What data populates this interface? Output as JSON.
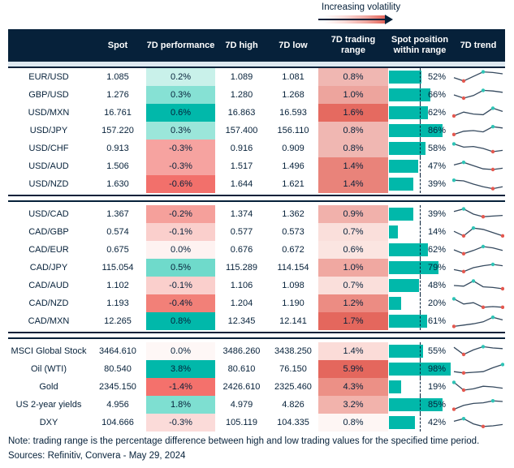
{
  "legend": {
    "label": "Increasing volatility"
  },
  "columns": [
    "",
    "Spot",
    "7D performance",
    "7D high",
    "7D low",
    "7D trading range",
    "Spot position within range",
    "7D trend"
  ],
  "footer": {
    "note": "Note: trading range is the percentage difference between high and low trading values for the specified time period.",
    "sources": "Sources: Refinitiv, Convera - May 29, 2024"
  },
  "colors": {
    "navy": "#06213A",
    "teal_bar": "#01B8AA",
    "sparkline_line": "#35495E",
    "dot_high": "#2EC4B6",
    "dot_low": "#E4584F",
    "header_strip": "#DEE8F0",
    "gradient_end": "#E4675D"
  },
  "chart_data": {
    "type": "table",
    "title": "Increasing volatility",
    "columns": [
      "Spot",
      "7D performance",
      "7D high",
      "7D low",
      "7D trading range",
      "Spot position within range",
      "7D trend"
    ],
    "groups": [
      {
        "rows": [
          {
            "name": "EUR/USD",
            "spot": "1.085",
            "performance": "0.2%",
            "perf_color": "#C9F1EA",
            "high": "1.089",
            "low": "1.081",
            "range": "0.8%",
            "range_color": "#F0B7B2",
            "position_pct": 52,
            "position_label": "52%",
            "trend": {
              "points": [
                0.45,
                0.2,
                0.55,
                0.9,
                0.85,
                0.75
              ],
              "high_idx": 3,
              "low_idx": [
                1
              ]
            }
          },
          {
            "name": "GBP/USD",
            "spot": "1.276",
            "performance": "0.3%",
            "perf_color": "#86E1D4",
            "high": "1.280",
            "low": "1.268",
            "range": "1.0%",
            "range_color": "#EDA49D",
            "position_pct": 66,
            "position_label": "66%",
            "trend": {
              "points": [
                0.5,
                0.25,
                0.45,
                0.85,
                0.8,
                0.7
              ],
              "high_idx": 3,
              "low_idx": [
                1
              ]
            }
          },
          {
            "name": "USD/MXN",
            "spot": "16.761",
            "performance": "0.6%",
            "perf_color": "#01B8AA",
            "high": "16.863",
            "low": "16.593",
            "range": "1.6%",
            "range_color": "#E56A60",
            "position_pct": 62,
            "position_label": "62%",
            "trend": {
              "points": [
                0.25,
                0.55,
                0.4,
                0.35,
                0.85,
                0.6
              ],
              "high_idx": 4,
              "low_idx": [
                0
              ]
            }
          },
          {
            "name": "USD/JPY",
            "spot": "157.220",
            "performance": "0.3%",
            "perf_color": "#9BE6DA",
            "high": "157.400",
            "low": "156.110",
            "range": "0.8%",
            "range_color": "#F0B7B2",
            "position_pct": 86,
            "position_label": "86%",
            "trend": {
              "points": [
                0.2,
                0.45,
                0.5,
                0.4,
                0.8,
                0.7
              ],
              "high_idx": 4,
              "low_idx": [
                0
              ]
            }
          },
          {
            "name": "USD/CHF",
            "spot": "0.913",
            "performance": "-0.3%",
            "perf_color": "#F6A3A0",
            "high": "0.916",
            "low": "0.909",
            "range": "0.8%",
            "range_color": "#F0B7B2",
            "position_pct": 58,
            "position_label": "58%",
            "trend": {
              "points": [
                0.85,
                0.6,
                0.65,
                0.5,
                0.25,
                0.35
              ],
              "high_idx": 0,
              "low_idx": [
                4
              ]
            }
          },
          {
            "name": "USD/AUD",
            "spot": "1.506",
            "performance": "-0.3%",
            "perf_color": "#F6A3A0",
            "high": "1.517",
            "low": "1.496",
            "range": "1.4%",
            "range_color": "#E9837A",
            "position_pct": 47,
            "position_label": "47%",
            "trend": {
              "points": [
                0.6,
                0.8,
                0.55,
                0.3,
                0.25,
                0.35
              ],
              "high_idx": 1,
              "low_idx": [
                4
              ]
            }
          },
          {
            "name": "USD/NZD",
            "spot": "1.630",
            "performance": "-0.6%",
            "perf_color": "#F2706B",
            "high": "1.644",
            "low": "1.621",
            "range": "1.4%",
            "range_color": "#E9837A",
            "position_pct": 39,
            "position_label": "39%",
            "trend": {
              "points": [
                0.8,
                0.75,
                0.5,
                0.3,
                0.15,
                0.3
              ],
              "high_idx": 0,
              "low_idx": [
                4
              ]
            }
          }
        ]
      },
      {
        "rows": [
          {
            "name": "USD/CAD",
            "spot": "1.367",
            "performance": "-0.2%",
            "perf_color": "#F5A09B",
            "high": "1.374",
            "low": "1.362",
            "range": "0.9%",
            "range_color": "#F1B1AB",
            "position_pct": 39,
            "position_label": "39%",
            "trend": {
              "points": [
                0.7,
                0.9,
                0.5,
                0.3,
                0.35,
                0.4
              ],
              "high_idx": 1,
              "low_idx": [
                3
              ]
            }
          },
          {
            "name": "CAD/GBP",
            "spot": "0.574",
            "performance": "-0.1%",
            "perf_color": "#FACFCC",
            "high": "0.577",
            "low": "0.573",
            "range": "0.7%",
            "range_color": "#FADFDB",
            "position_pct": 14,
            "position_label": "14%",
            "trend": {
              "points": [
                0.55,
                0.2,
                0.8,
                0.7,
                0.45,
                0.2
              ],
              "high_idx": 2,
              "low_idx": [
                1,
                5
              ]
            }
          },
          {
            "name": "CAD/EUR",
            "spot": "0.675",
            "performance": "0.0%",
            "perf_color": "#FEF2F1",
            "high": "0.676",
            "low": "0.672",
            "range": "0.6%",
            "range_color": "#FBE5E1",
            "position_pct": 62,
            "position_label": "62%",
            "trend": {
              "points": [
                0.5,
                0.2,
                0.45,
                0.75,
                0.65,
                0.45
              ],
              "high_idx": 3,
              "low_idx": [
                1
              ]
            }
          },
          {
            "name": "CAD/JPY",
            "spot": "115.054",
            "performance": "0.5%",
            "perf_color": "#6FDACB",
            "high": "115.289",
            "low": "114.154",
            "range": "1.0%",
            "range_color": "#F0A8A1",
            "position_pct": 79,
            "position_label": "79%",
            "trend": {
              "points": [
                0.35,
                0.2,
                0.5,
                0.65,
                0.75,
                0.65
              ],
              "high_idx": 4,
              "low_idx": [
                1
              ]
            }
          },
          {
            "name": "CAD/AUD",
            "spot": "1.102",
            "performance": "-0.1%",
            "perf_color": "#FACFCC",
            "high": "1.106",
            "low": "1.098",
            "range": "0.7%",
            "range_color": "#FADFDB",
            "position_pct": 48,
            "position_label": "48%",
            "trend": {
              "points": [
                0.5,
                0.45,
                0.85,
                0.4,
                0.35,
                0.25
              ],
              "high_idx": 2,
              "low_idx": [
                5
              ]
            }
          },
          {
            "name": "CAD/NZD",
            "spot": "1.193",
            "performance": "-0.4%",
            "perf_color": "#F28078",
            "high": "1.204",
            "low": "1.190",
            "range": "1.2%",
            "range_color": "#EC8C83",
            "position_pct": 20,
            "position_label": "20%",
            "trend": {
              "points": [
                0.85,
                0.45,
                0.55,
                0.2,
                0.25,
                0.2
              ],
              "high_idx": 0,
              "low_idx": [
                3,
                5
              ]
            }
          },
          {
            "name": "CAD/MXN",
            "spot": "12.265",
            "performance": "0.8%",
            "perf_color": "#01B8AA",
            "high": "12.345",
            "low": "12.141",
            "range": "1.7%",
            "range_color": "#E4675D",
            "position_pct": 61,
            "position_label": "61%",
            "trend": {
              "points": [
                0.1,
                0.2,
                0.3,
                0.45,
                0.8,
                0.6
              ],
              "high_idx": 4,
              "low_idx": [
                0
              ]
            }
          }
        ]
      },
      {
        "rows": [
          {
            "name": "MSCI Global Stock",
            "spot": "3464.610",
            "performance": "0.0%",
            "perf_color": "#FEF7F6",
            "high": "3486.260",
            "low": "3438.250",
            "range": "1.4%",
            "range_color": "#FBDCD8",
            "position_pct": 55,
            "position_label": "55%",
            "trend": {
              "points": [
                0.8,
                0.25,
                0.6,
                0.85,
                0.75,
                0.7
              ],
              "high_idx": 3,
              "low_idx": [
                1
              ]
            }
          },
          {
            "name": "Oil (WTI)",
            "spot": "80.540",
            "performance": "3.8%",
            "perf_color": "#01B8AA",
            "high": "80.610",
            "low": "76.150",
            "range": "5.9%",
            "range_color": "#E4675D",
            "position_pct": 98,
            "position_label": "98%",
            "trend": {
              "points": [
                0.3,
                0.2,
                0.25,
                0.3,
                0.6,
                0.85
              ],
              "high_idx": 5,
              "low_idx": [
                1
              ]
            }
          },
          {
            "name": "Gold",
            "spot": "2345.150",
            "performance": "-1.4%",
            "perf_color": "#F4716C",
            "high": "2426.610",
            "low": "2325.460",
            "range": "4.3%",
            "range_color": "#EC9086",
            "position_pct": 19,
            "position_label": "19%",
            "trend": {
              "points": [
                0.85,
                0.25,
                0.35,
                0.55,
                0.5,
                0.4
              ],
              "high_idx": 0,
              "low_idx": [
                1
              ]
            }
          },
          {
            "name": "US 2-year yields",
            "spot": "4.956",
            "performance": "1.8%",
            "perf_color": "#7EDFD1",
            "high": "4.979",
            "low": "4.826",
            "range": "3.2%",
            "range_color": "#F2B3AC",
            "position_pct": 85,
            "position_label": "85%",
            "trend": {
              "points": [
                0.15,
                0.45,
                0.6,
                0.65,
                0.8,
                0.75
              ],
              "high_idx": 4,
              "low_idx": [
                0
              ]
            }
          },
          {
            "name": "DXY",
            "spot": "104.666",
            "performance": "-0.3%",
            "perf_color": "#FBDBD9",
            "high": "105.119",
            "low": "104.335",
            "range": "0.8%",
            "range_color": "#FEF6F4",
            "position_pct": 42,
            "position_label": "42%",
            "trend": {
              "points": [
                0.6,
                0.8,
                0.4,
                0.2,
                0.25,
                0.35
              ],
              "high_idx": 1,
              "low_idx": [
                3
              ]
            }
          }
        ]
      }
    ]
  }
}
